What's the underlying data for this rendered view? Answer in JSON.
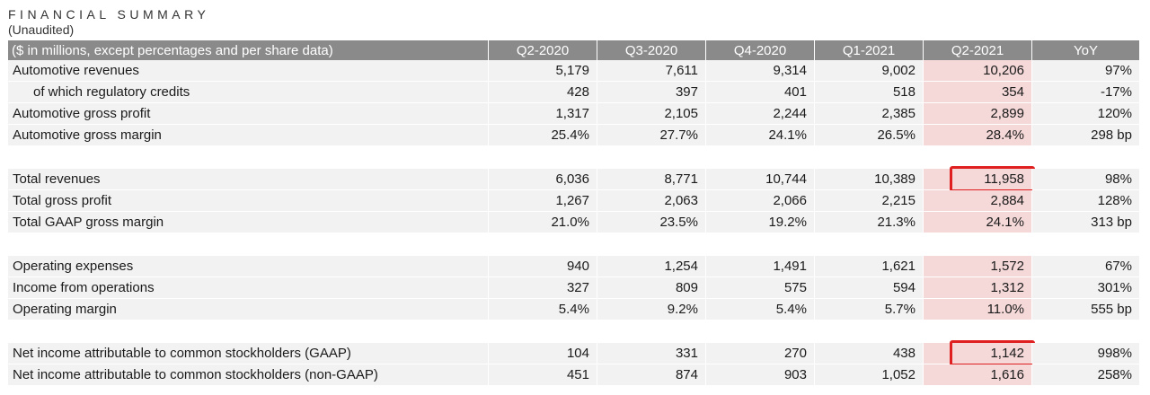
{
  "header": {
    "title": "FINANCIAL SUMMARY",
    "subtitle": "(Unaudited)"
  },
  "table": {
    "columns": [
      "($ in millions, except percentages and per share data)",
      "Q2-2020",
      "Q3-2020",
      "Q4-2020",
      "Q1-2021",
      "Q2-2021",
      "YoY"
    ],
    "highlighted_column": "Q2-2021",
    "highlight_color": "#f5d8d8",
    "box_color": "#e02020",
    "groups": [
      {
        "rows": [
          {
            "label": "Automotive revenues",
            "values": [
              "5,179",
              "7,611",
              "9,314",
              "9,002",
              "10,206",
              "97%"
            ]
          },
          {
            "label": "of which regulatory credits",
            "values": [
              "428",
              "397",
              "401",
              "518",
              "354",
              "-17%"
            ]
          },
          {
            "label": "Automotive gross profit",
            "values": [
              "1,317",
              "2,105",
              "2,244",
              "2,385",
              "2,899",
              "120%"
            ]
          },
          {
            "label": "Automotive gross margin",
            "values": [
              "25.4%",
              "27.7%",
              "24.1%",
              "26.5%",
              "28.4%",
              "298 bp"
            ]
          }
        ]
      },
      {
        "rows": [
          {
            "label": "Total revenues",
            "values": [
              "6,036",
              "8,771",
              "10,744",
              "10,389",
              "11,958",
              "98%"
            ]
          },
          {
            "label": "Total gross profit",
            "values": [
              "1,267",
              "2,063",
              "2,066",
              "2,215",
              "2,884",
              "128%"
            ]
          },
          {
            "label": "Total GAAP gross margin",
            "values": [
              "21.0%",
              "23.5%",
              "19.2%",
              "21.3%",
              "24.1%",
              "313 bp"
            ]
          }
        ]
      },
      {
        "rows": [
          {
            "label": "Operating expenses",
            "values": [
              "940",
              "1,254",
              "1,491",
              "1,621",
              "1,572",
              "67%"
            ]
          },
          {
            "label": "Income from operations",
            "values": [
              "327",
              "809",
              "575",
              "594",
              "1,312",
              "301%"
            ]
          },
          {
            "label": "Operating margin",
            "values": [
              "5.4%",
              "9.2%",
              "5.4%",
              "5.7%",
              "11.0%",
              "555 bp"
            ]
          }
        ]
      },
      {
        "rows": [
          {
            "label": "Net income attributable to common stockholders (GAAP)",
            "values": [
              "104",
              "331",
              "270",
              "438",
              "1,142",
              "998%"
            ]
          },
          {
            "label": "Net income attributable to common stockholders (non-GAAP)",
            "values": [
              "451",
              "874",
              "903",
              "1,052",
              "1,616",
              "258%"
            ]
          }
        ]
      }
    ]
  }
}
